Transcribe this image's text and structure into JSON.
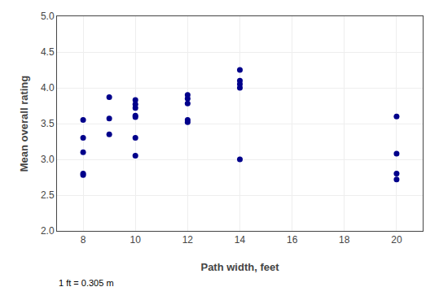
{
  "chart_data": {
    "type": "scatter",
    "xlabel": "Path width, feet",
    "ylabel": "Mean overall rating",
    "annotations": [
      "1 ft = 0.305 m"
    ],
    "x": [
      8,
      8,
      8,
      8,
      8,
      9,
      9,
      9,
      10,
      10,
      10,
      10,
      10,
      10,
      10,
      12,
      12,
      12,
      12,
      12,
      14,
      14,
      14,
      14,
      14,
      20,
      20,
      20,
      20
    ],
    "values": [
      3.55,
      3.3,
      3.1,
      2.8,
      2.78,
      3.87,
      3.57,
      3.35,
      3.83,
      3.77,
      3.72,
      3.61,
      3.59,
      3.3,
      3.05,
      3.9,
      3.85,
      3.78,
      3.55,
      3.52,
      4.25,
      4.1,
      4.05,
      4.0,
      3.0,
      3.6,
      3.08,
      2.8,
      2.72
    ],
    "color": "#00008B",
    "xlim": [
      7,
      21
    ],
    "ylim": [
      2.0,
      5.0
    ],
    "xticks": [
      8,
      10,
      12,
      14,
      16,
      18,
      20
    ],
    "yticks": [
      {
        "value": 2.0,
        "label": "2.0"
      },
      2.5,
      {
        "value": 3.0,
        "label": "3.0"
      },
      3.5,
      {
        "value": 4.0,
        "label": "4.0"
      },
      4.5,
      {
        "value": 5.0,
        "label": "5.0"
      }
    ],
    "grid": true
  }
}
